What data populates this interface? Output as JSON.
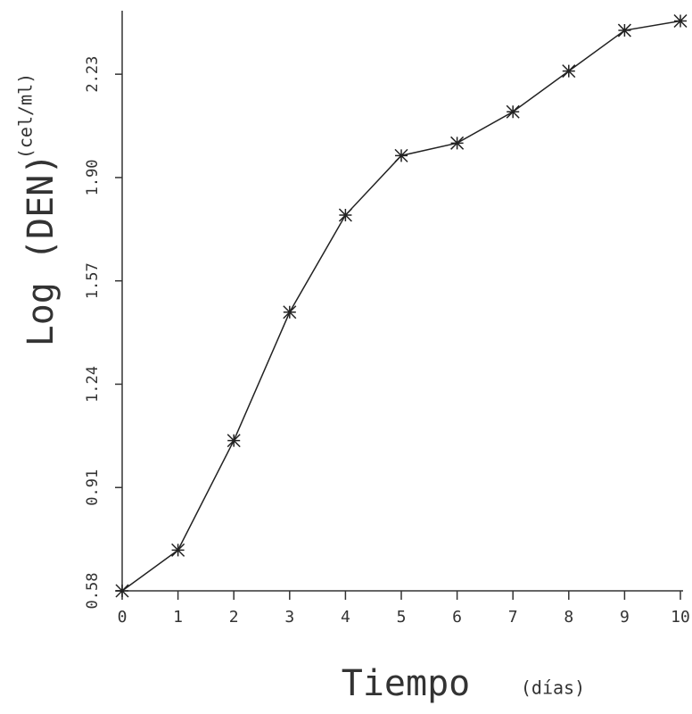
{
  "chart_data": {
    "type": "line",
    "ylabel": "Log (DEN)",
    "ylabel_unit": "(cel/ml)",
    "xlabel": "Tiempo",
    "xlabel_unit": "(días)",
    "x": [
      0,
      1,
      2,
      3,
      4,
      5,
      6,
      7,
      8,
      9,
      10
    ],
    "series": [
      {
        "color": "#222222",
        "values": [
          0.58,
          0.71,
          1.06,
          1.47,
          1.78,
          1.97,
          2.01,
          2.11,
          2.24,
          2.37,
          2.4
        ]
      }
    ],
    "xlim": [
      0,
      10
    ],
    "xticks": [
      0,
      1,
      2,
      3,
      4,
      5,
      6,
      7,
      8,
      9,
      10
    ],
    "ylim": [
      0.58,
      2.41
    ],
    "yticks": [
      0.58,
      0.91,
      1.24,
      1.57,
      {
        "value": 1.9,
        "label": "1.90"
      },
      2.23
    ]
  }
}
